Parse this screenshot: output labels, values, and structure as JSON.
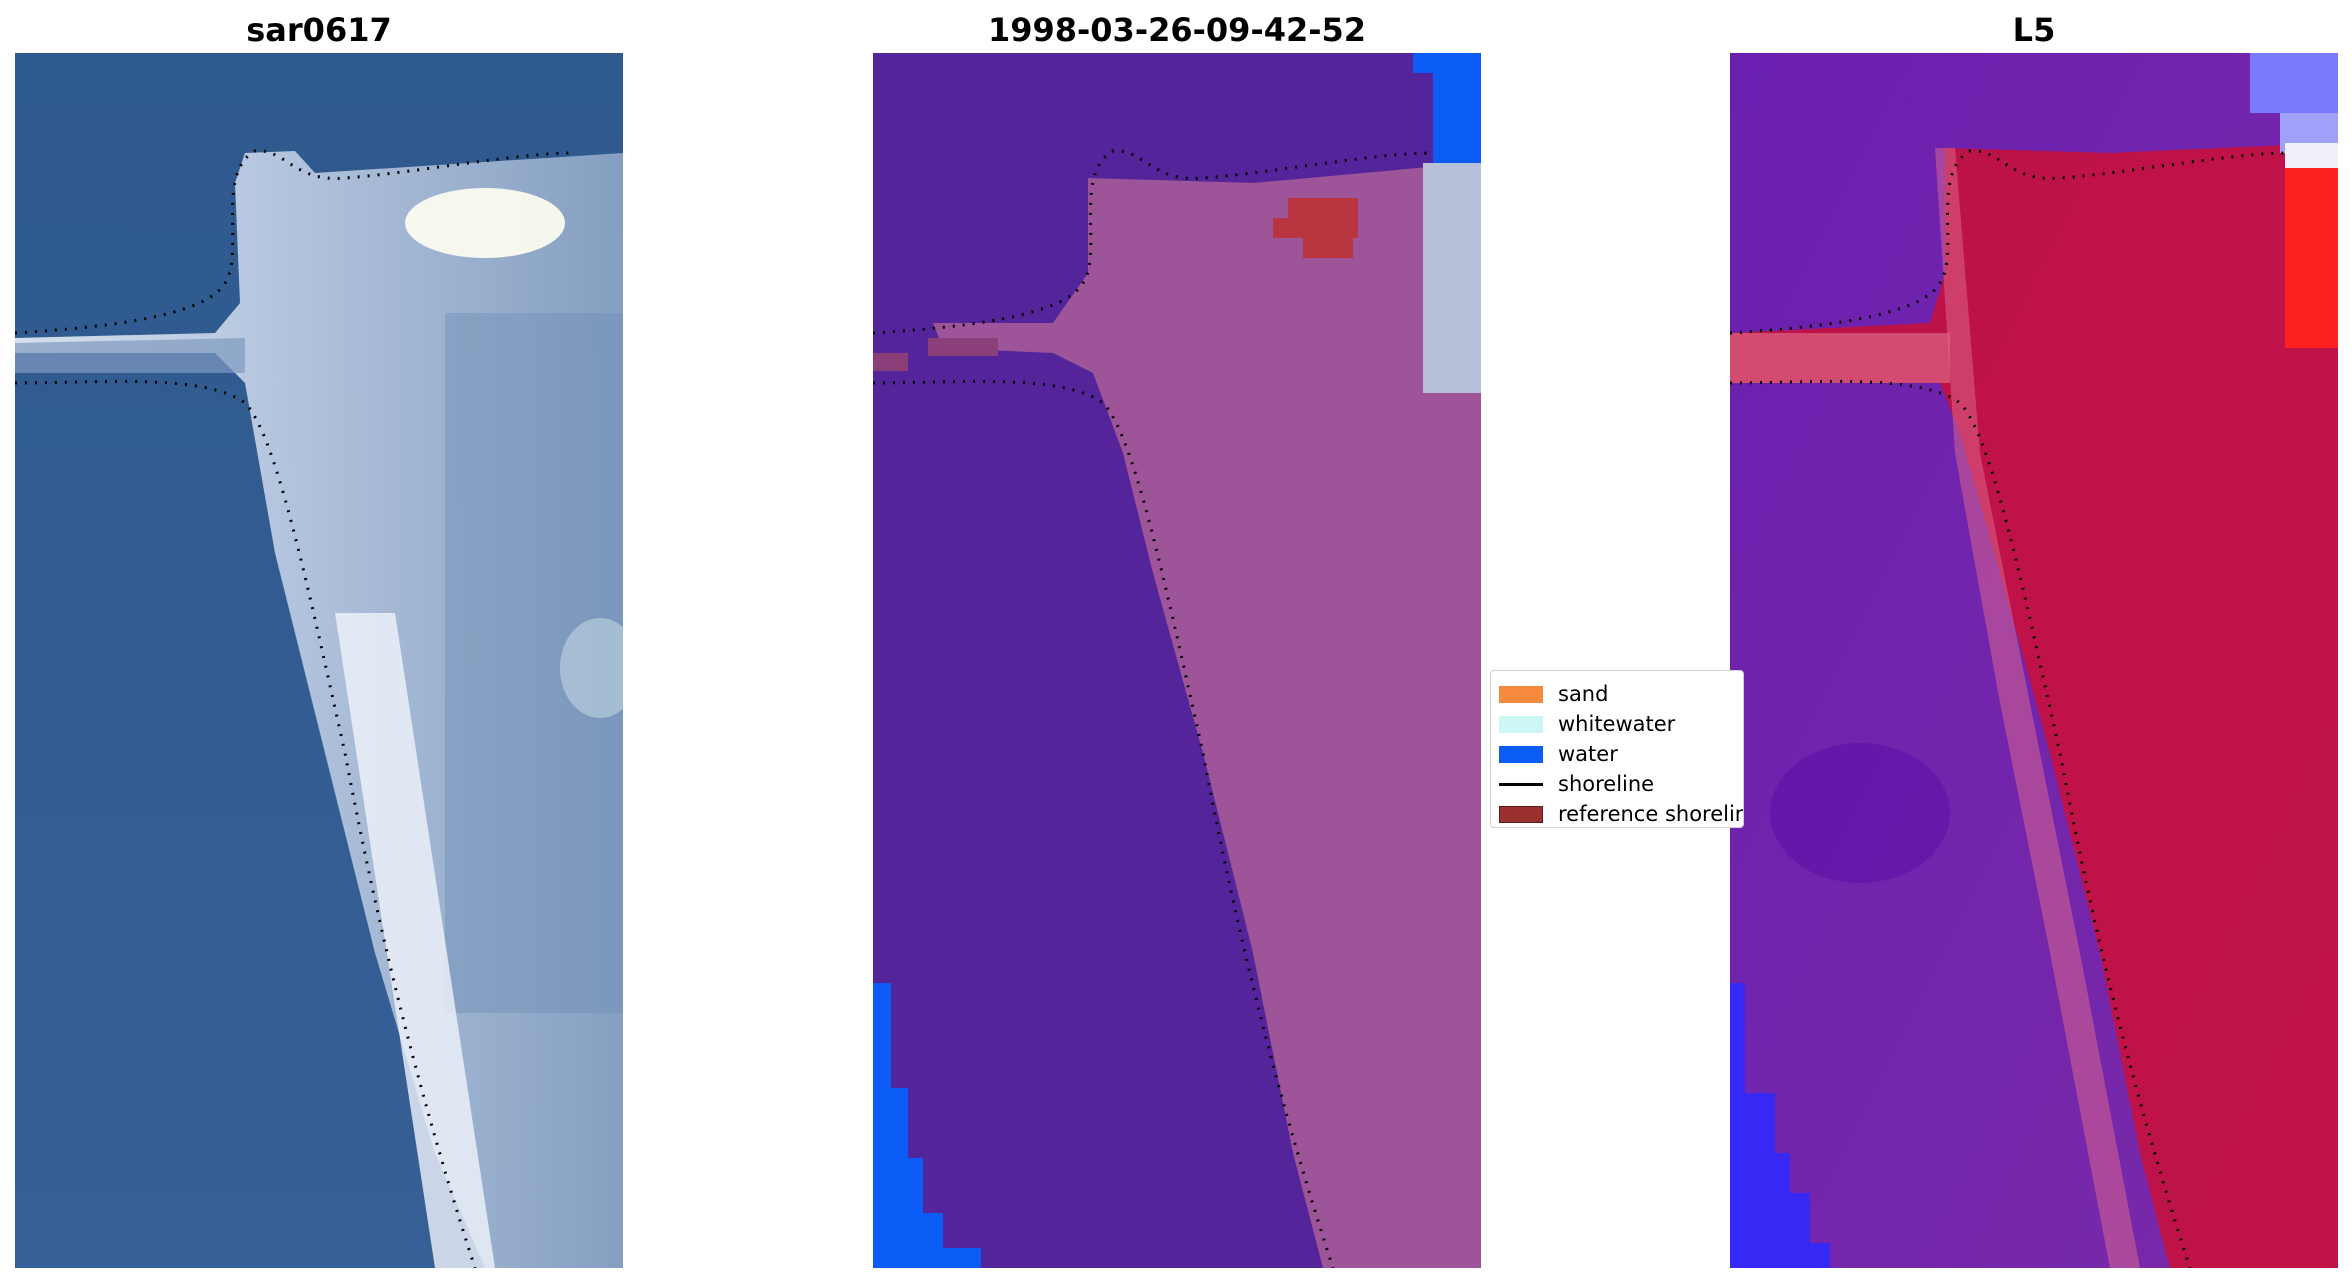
{
  "panels": [
    {
      "title": "sar0617"
    },
    {
      "title": "1998-03-26-09-42-52"
    },
    {
      "title": "L5"
    }
  ],
  "legend": {
    "items": [
      {
        "label": "sand",
        "color": "#f58a3c"
      },
      {
        "label": "whitewater",
        "color": "#ccf7f5"
      },
      {
        "label": "water",
        "color": "#0a5cf5"
      },
      {
        "label": "shoreline",
        "color": "#000000"
      },
      {
        "label": "reference shoreline",
        "color": "#9a3030"
      }
    ]
  },
  "colors": {
    "rgb_water": "#335f91",
    "rgb_land": "#c9d4e6",
    "class_background": "#53249a",
    "class_land": "#a65a98",
    "class_water": "#0a5cf5",
    "class_reference": "#b8343e",
    "index_low": "#6a1fb0",
    "index_high": "#c8103a",
    "shoreline": "#000000"
  }
}
